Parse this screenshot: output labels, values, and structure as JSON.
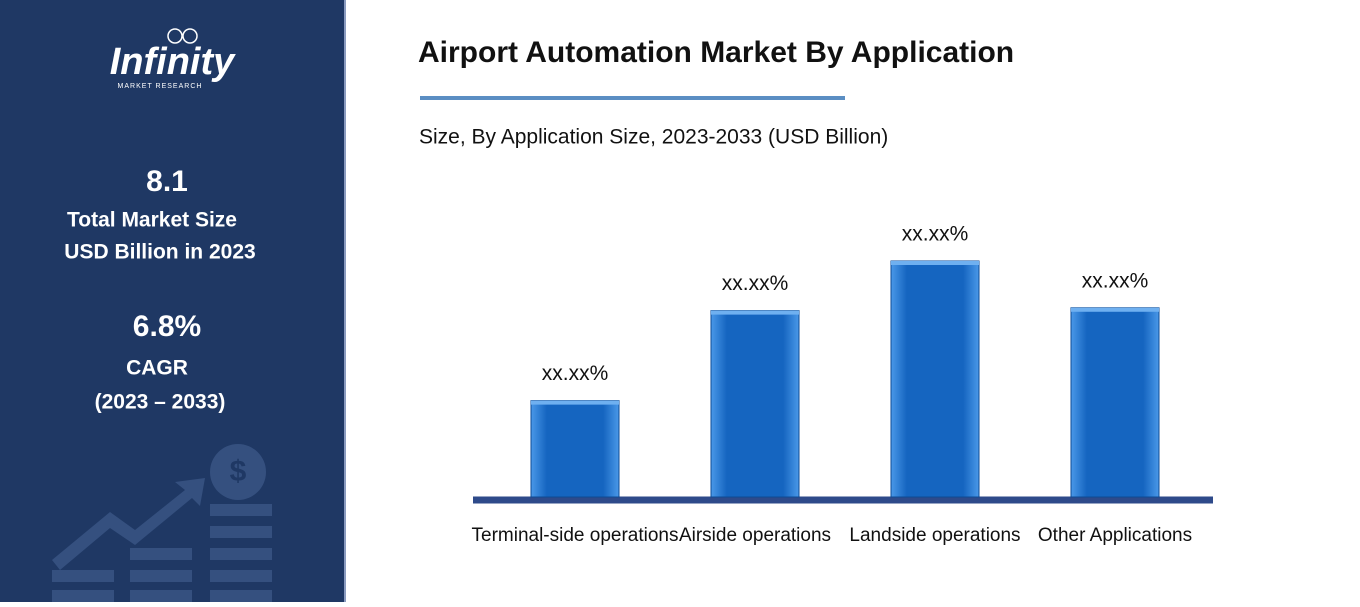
{
  "sidebar": {
    "logo": {
      "name": "Infinity",
      "tagline": "MARKET RESEARCH"
    },
    "market_size": {
      "value": 8.1,
      "lines": [
        "Total Market Size",
        "USD Billion in 2023"
      ]
    },
    "cagr": {
      "value": "6.8%",
      "lines": [
        "CAGR",
        "(2023 – 2033)"
      ]
    }
  },
  "chart_data": {
    "type": "bar",
    "title": "Airport Automation Market By Application",
    "subtitle": "Size, By Application Size, 2023-2033 (USD Billion)",
    "categories": [
      "Terminal-side operations",
      "Airside operations",
      "Landside operations",
      "Other Applications"
    ],
    "values": [
      13.6,
      26.3,
      33.3,
      26.7
    ],
    "value_labels": [
      "xx.xx%",
      "xx.xx%",
      "xx.xx%",
      "xx.xx%"
    ],
    "color": "#1565c0"
  }
}
